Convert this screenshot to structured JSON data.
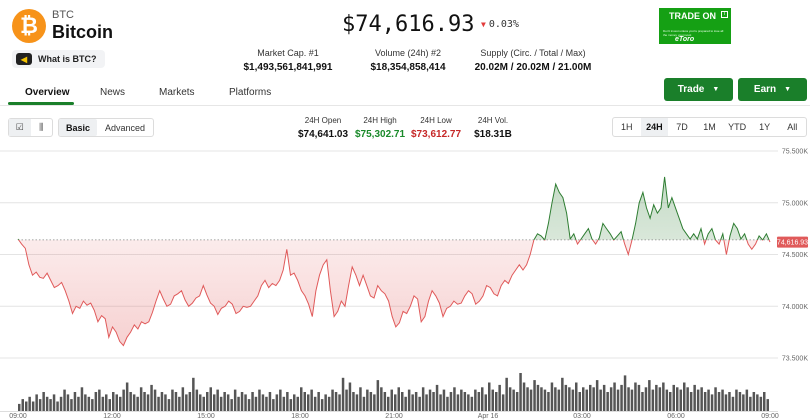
{
  "coin": {
    "symbol": "BTC",
    "name": "Bitcoin",
    "logo_glyph": "₿",
    "logo_color": "#f7931a"
  },
  "what_is": {
    "label": "What is BTC?"
  },
  "price": {
    "value": "$74,616.93",
    "change": "0.03%",
    "change_direction": "down",
    "change_color": "#e23b3b"
  },
  "ad": {
    "title": "TRADE ON",
    "brand": "eToro",
    "disclaimer": "Don't invest unless you're prepared to lose all the money you invest"
  },
  "stats": [
    {
      "label": "Market Cap. #1",
      "value": "$1,493,561,841,991"
    },
    {
      "label": "Volume (24h) #2",
      "value": "$18,354,858,414"
    },
    {
      "label": "Supply (Circ. / Total / Max)",
      "value": "20.02M / 20.02M / 21.00M"
    }
  ],
  "tabs": [
    {
      "label": "Overview",
      "active": true
    },
    {
      "label": "News",
      "active": false
    },
    {
      "label": "Markets",
      "active": false
    },
    {
      "label": "Platforms",
      "active": false
    }
  ],
  "buttons": {
    "trade": "Trade",
    "earn": "Earn",
    "accent": "#1a7f2a"
  },
  "chart_mode": {
    "basic": "Basic",
    "advanced": "Advanced",
    "selected": "Basic"
  },
  "ohlc": [
    {
      "label": "24H Open",
      "value": "$74,641.03",
      "color": "#111111"
    },
    {
      "label": "24H High",
      "value": "$75,302.71",
      "color": "#1a8a2a"
    },
    {
      "label": "24H Low",
      "value": "$73,612.77",
      "color": "#c62828"
    },
    {
      "label": "24H Vol.",
      "value": "$18.31B",
      "color": "#111111"
    }
  ],
  "ranges": {
    "options": [
      "1H",
      "24H",
      "7D",
      "1M",
      "YTD",
      "1Y",
      "All"
    ],
    "selected": "24H"
  },
  "chart_data": {
    "type": "line",
    "baseline": 74641.03,
    "current_label": "74,616.93",
    "ylim": [
      73500,
      75500
    ],
    "y_ticks": [
      {
        "value": 75500,
        "label": "75.500K"
      },
      {
        "value": 75000,
        "label": "75.000K"
      },
      {
        "value": 74500,
        "label": "74.500K"
      },
      {
        "value": 74000,
        "label": "74.000K"
      },
      {
        "value": 73500,
        "label": "73.500K"
      }
    ],
    "x_ticks": [
      {
        "t": 0,
        "label": "09:00"
      },
      {
        "t": 3,
        "label": "12:00"
      },
      {
        "t": 6,
        "label": "15:00"
      },
      {
        "t": 9,
        "label": "18:00"
      },
      {
        "t": 12,
        "label": "21:00"
      },
      {
        "t": 15,
        "label": "Apr 16"
      },
      {
        "t": 18,
        "label": "03:00"
      },
      {
        "t": 21,
        "label": "06:00"
      },
      {
        "t": 24,
        "label": "09:00"
      }
    ],
    "x_range": [
      0,
      24
    ],
    "up_color": "#2e7d32",
    "down_color": "#e05a5a",
    "prices": [
      74650,
      74600,
      74560,
      74400,
      74300,
      74330,
      74280,
      74270,
      74320,
      74250,
      74180,
      74200,
      74230,
      74150,
      74050,
      73930,
      74000,
      73980,
      74050,
      74010,
      74030,
      73960,
      73850,
      73910,
      73880,
      73700,
      73800,
      73750,
      73660,
      73620,
      73700,
      73750,
      73820,
      73780,
      73850,
      73830,
      73850,
      73940,
      74050,
      74150,
      74070,
      74000,
      74020,
      74100,
      74120,
      74150,
      74060,
      74000,
      74030,
      74080,
      74100,
      74200,
      74110,
      74030,
      74000,
      73920,
      73980,
      74000,
      74050,
      74020,
      73930,
      73950,
      74000,
      73990,
      74000,
      74050,
      74100,
      74200,
      74250,
      74180,
      74220,
      74200,
      74250,
      74350,
      74550,
      74300,
      74320,
      74250,
      74150,
      74100,
      74020,
      73900,
      74150,
      74300,
      74400,
      74450,
      74150,
      73900,
      73950,
      74050,
      74000,
      74200,
      74380,
      74300,
      74200,
      74300,
      74200,
      74100,
      74080,
      74200,
      74150,
      74120,
      74050,
      73900,
      73800,
      73840,
      73950,
      73930,
      74000,
      74100,
      74070,
      73850,
      73900,
      74050,
      74150,
      74100,
      74030,
      73900,
      73980,
      74000,
      74050,
      74020,
      74030,
      74100,
      74150,
      74120,
      74020,
      74050,
      74100,
      74200,
      74180,
      74120,
      74100,
      74200,
      74250,
      74220,
      74300,
      74350,
      74400,
      74350,
      74400,
      74500,
      74640,
      74700,
      74680,
      74640,
      74800,
      75000,
      75180,
      75100,
      75050,
      74900,
      74650,
      74700,
      74600,
      74650,
      74700,
      74750,
      74650,
      74600,
      74660,
      74800,
      74750,
      74700,
      74640,
      74680,
      74720,
      74600,
      74500,
      74640,
      74800,
      75000,
      75100,
      74950,
      74850,
      74980,
      74900,
      74950,
      75250,
      74950,
      75050,
      74950,
      74850,
      74750,
      74700,
      74650,
      74700,
      74650,
      74750,
      74600,
      74700,
      74750,
      74640,
      74600,
      74700,
      74500,
      74680,
      74800,
      74750,
      74650,
      74700,
      74600,
      74550,
      74600,
      74680,
      74640,
      74700,
      74620
    ],
    "volumes": [
      3,
      5,
      4,
      6,
      4,
      7,
      5,
      8,
      6,
      5,
      7,
      4,
      6,
      9,
      7,
      5,
      8,
      6,
      10,
      7,
      6,
      5,
      8,
      9,
      6,
      7,
      5,
      8,
      7,
      6,
      9,
      12,
      8,
      7,
      6,
      10,
      8,
      7,
      11,
      9,
      6,
      8,
      7,
      5,
      9,
      8,
      6,
      10,
      7,
      8,
      14,
      9,
      7,
      6,
      8,
      10,
      7,
      9,
      6,
      8,
      7,
      5,
      9,
      6,
      8,
      7,
      5,
      8,
      6,
      9,
      7,
      6,
      8,
      5,
      7,
      9,
      6,
      8,
      5,
      7,
      6,
      10,
      8,
      7,
      9,
      6,
      8,
      5,
      7,
      6,
      9,
      8,
      7,
      14,
      9,
      12,
      8,
      7,
      10,
      6,
      9,
      8,
      7,
      13,
      10,
      8,
      6,
      9,
      7,
      10,
      8,
      6,
      9,
      7,
      8,
      6,
      10,
      7,
      9,
      8,
      11,
      7,
      9,
      6,
      8,
      10,
      7,
      9,
      8,
      7,
      6,
      9,
      8,
      10,
      7,
      12,
      9,
      8,
      11,
      7,
      14,
      10,
      9,
      8,
      16,
      12,
      10,
      9,
      13,
      11,
      10,
      9,
      8,
      12,
      10,
      9,
      14,
      11,
      10,
      9,
      12,
      8,
      10,
      9,
      11,
      10,
      13,
      9,
      11,
      8,
      10,
      12,
      9,
      11,
      15,
      10,
      9,
      12,
      11,
      8,
      10,
      13,
      9,
      11,
      10,
      12,
      9,
      8,
      11,
      10,
      9,
      12,
      10,
      8,
      11,
      9,
      10,
      8,
      9,
      7,
      10,
      8,
      9,
      7,
      8,
      6,
      9,
      8,
      7,
      9,
      6,
      8,
      7,
      6,
      8,
      5
    ]
  }
}
